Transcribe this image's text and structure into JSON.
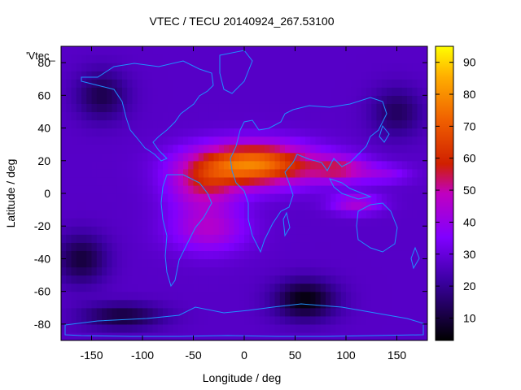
{
  "chart_data": {
    "type": "heatmap",
    "title": "VTEC / TECU 20140924_267.53100",
    "xlabel": "Longitude / deg",
    "ylabel": "Latitude / deg",
    "series_key": "'Vtec_",
    "xlim": [
      -180,
      180
    ],
    "ylim": [
      -90,
      90
    ],
    "x_ticks": [
      -150,
      -100,
      -50,
      0,
      50,
      100,
      150
    ],
    "x_tick_labels": [
      "-150",
      "-100",
      "-50",
      "0",
      "50",
      "100",
      "150"
    ],
    "y_ticks": [
      -80,
      -60,
      -40,
      -20,
      0,
      20,
      40,
      60,
      80
    ],
    "y_tick_labels": [
      "-80",
      "-60",
      "-40",
      "-20",
      "0",
      "20",
      "40",
      "60",
      "80"
    ],
    "colorbar": {
      "range": [
        3,
        95
      ],
      "ticks": [
        10,
        20,
        30,
        40,
        50,
        60,
        70,
        80,
        90
      ],
      "tick_labels": [
        "10",
        "20",
        "30",
        "40",
        "50",
        "60",
        "70",
        "80",
        "90"
      ]
    },
    "grid": false,
    "coastlines_color": "#1e90ff",
    "enhancement_regions": [
      {
        "lon": 10,
        "lat": 18,
        "lon_width": 58,
        "lat_width": 13,
        "peak": 50
      },
      {
        "lon": -40,
        "lat": 5,
        "lon_width": 35,
        "lat_width": 16,
        "peak": 22
      },
      {
        "lon": -35,
        "lat": -22,
        "lon_width": 38,
        "lat_width": 14,
        "peak": 18
      },
      {
        "lon": 95,
        "lat": 15,
        "lon_width": 30,
        "lat_width": 8,
        "peak": 22
      },
      {
        "lon": 110,
        "lat": -6,
        "lon_width": 25,
        "lat_width": 6,
        "peak": 18
      },
      {
        "lon": 140,
        "lat": 12,
        "lon_width": 25,
        "lat_width": 6,
        "peak": 10
      }
    ],
    "background_level": 27,
    "low_regions": [
      {
        "lon": 60,
        "lat": -65,
        "lon_width": 30,
        "lat_width": 12,
        "value": 4
      },
      {
        "lon": -160,
        "lat": -40,
        "lon_width": 25,
        "lat_width": 15,
        "value": 10
      },
      {
        "lon": -140,
        "lat": 60,
        "lon_width": 25,
        "lat_width": 15,
        "value": 12
      },
      {
        "lon": 150,
        "lat": 50,
        "lon_width": 25,
        "lat_width": 15,
        "value": 14
      },
      {
        "lon": -120,
        "lat": -75,
        "lon_width": 40,
        "lat_width": 8,
        "value": 10
      }
    ],
    "colors": {
      "low": "#000000",
      "mid_low": "#7f00ff",
      "mid": "#c04000",
      "high": "#ffff00",
      "frame": "#000000"
    }
  }
}
